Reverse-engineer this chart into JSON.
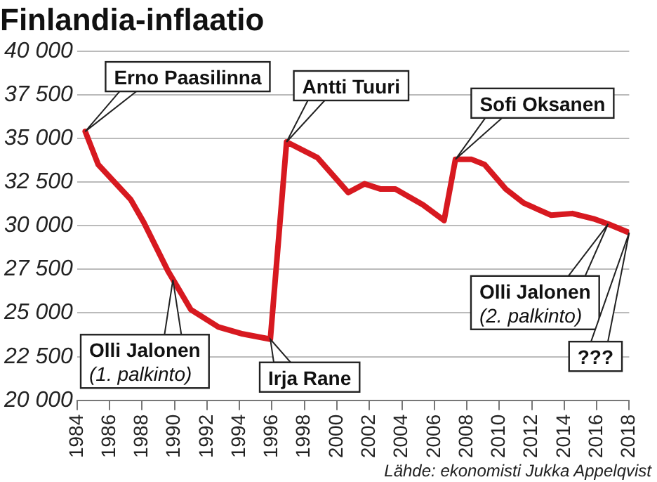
{
  "chart_data": {
    "type": "line",
    "title": "Finlandia-inflaatio",
    "x": [
      1984.5,
      1985.3,
      1987.3,
      1988.1,
      1989.6,
      1991.0,
      1992.7,
      1994.2,
      1995.9,
      1996.9,
      1998.8,
      2000.7,
      2001.7,
      2002.7,
      2003.6,
      2005.3,
      2006.6,
      2007.3,
      2008.3,
      2009.1,
      2010.4,
      2011.5,
      2013.2,
      2014.5,
      2015.8,
      2016.7,
      2018
    ],
    "series": [
      {
        "color": "#d71920",
        "values": [
          35400,
          33500,
          31500,
          30200,
          27400,
          25200,
          24200,
          23800,
          23500,
          34800,
          33900,
          31900,
          32400,
          32100,
          32100,
          31200,
          30300,
          33800,
          33800,
          33500,
          32100,
          31300,
          30600,
          30700,
          30400,
          30100,
          29600
        ]
      }
    ],
    "xlim": [
      1984,
      2018
    ],
    "xticks": [
      1984,
      1986,
      1988,
      1990,
      1992,
      1994,
      1996,
      1998,
      2000,
      2002,
      2004,
      2006,
      2008,
      2010,
      2012,
      2014,
      2016,
      2018
    ],
    "ylim": [
      20000,
      40000
    ],
    "yticks": [
      {
        "value": 20000,
        "label": "20 000"
      },
      {
        "value": 22500,
        "label": "22 500"
      },
      {
        "value": 25000,
        "label": "25 000"
      },
      {
        "value": 27500,
        "label": "27 500"
      },
      {
        "value": 30000,
        "label": "30 000"
      },
      {
        "value": 32500,
        "label": "32 500"
      },
      {
        "value": 35000,
        "label": "35 000"
      },
      {
        "value": 37500,
        "label": "37 500"
      },
      {
        "value": 40000,
        "label": "40 000"
      }
    ],
    "grid": "y",
    "marker": "none",
    "line_style": "solid",
    "legend": false,
    "annotations": [
      {
        "text": "Erno Paasilinna",
        "x": 1984.5,
        "y": 35400
      },
      {
        "text": "Antti Tuuri",
        "x": 1996.9,
        "y": 34800
      },
      {
        "text": "Sofi Oksanen",
        "x": 2007.3,
        "y": 33800
      },
      {
        "text": "Olli Jalonen\n(2. palkinto)",
        "x": 2016.7,
        "y": 30100
      },
      {
        "text": "???",
        "x": 2018,
        "y": 29600
      },
      {
        "text": "Olli Jalonen\n(1. palkinto)",
        "x": 1989.9,
        "y": 26900
      },
      {
        "text": "Irja Rane",
        "x": 1995.9,
        "y": 23500
      },
      "Lähde: ekonomisti Jukka Appelqvist"
    ]
  }
}
